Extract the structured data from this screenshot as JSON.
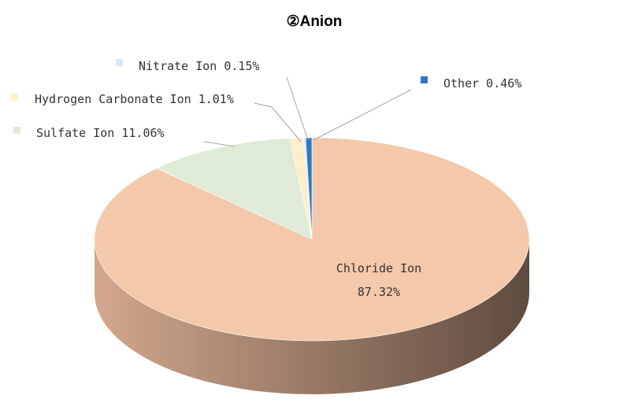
{
  "chart_data": {
    "type": "pie",
    "title": "②Anion",
    "series": [
      {
        "name": "Chloride Ion",
        "value": 87.32,
        "value_label": "87.32%",
        "color": "#F4C8AA"
      },
      {
        "name": "Sulfate Ion",
        "value": 11.06,
        "value_label": "11.06%",
        "color": "#DFEBD7"
      },
      {
        "name": "Hydrogen Carbonate Ion",
        "value": 1.01,
        "value_label": "1.01%",
        "color": "#FDEECB"
      },
      {
        "name": "Nitrate Ion",
        "value": 0.15,
        "value_label": "0.15%",
        "color": "#D9E6F4"
      },
      {
        "name": "Other",
        "value": 0.46,
        "value_label": "0.46%",
        "color": "#2E78C0"
      }
    ],
    "side_color_light": "#D2A78D",
    "side_color_dark": "#5F4B3F",
    "leader_line_color": "#A6A6A6",
    "style": "3d-pie"
  }
}
